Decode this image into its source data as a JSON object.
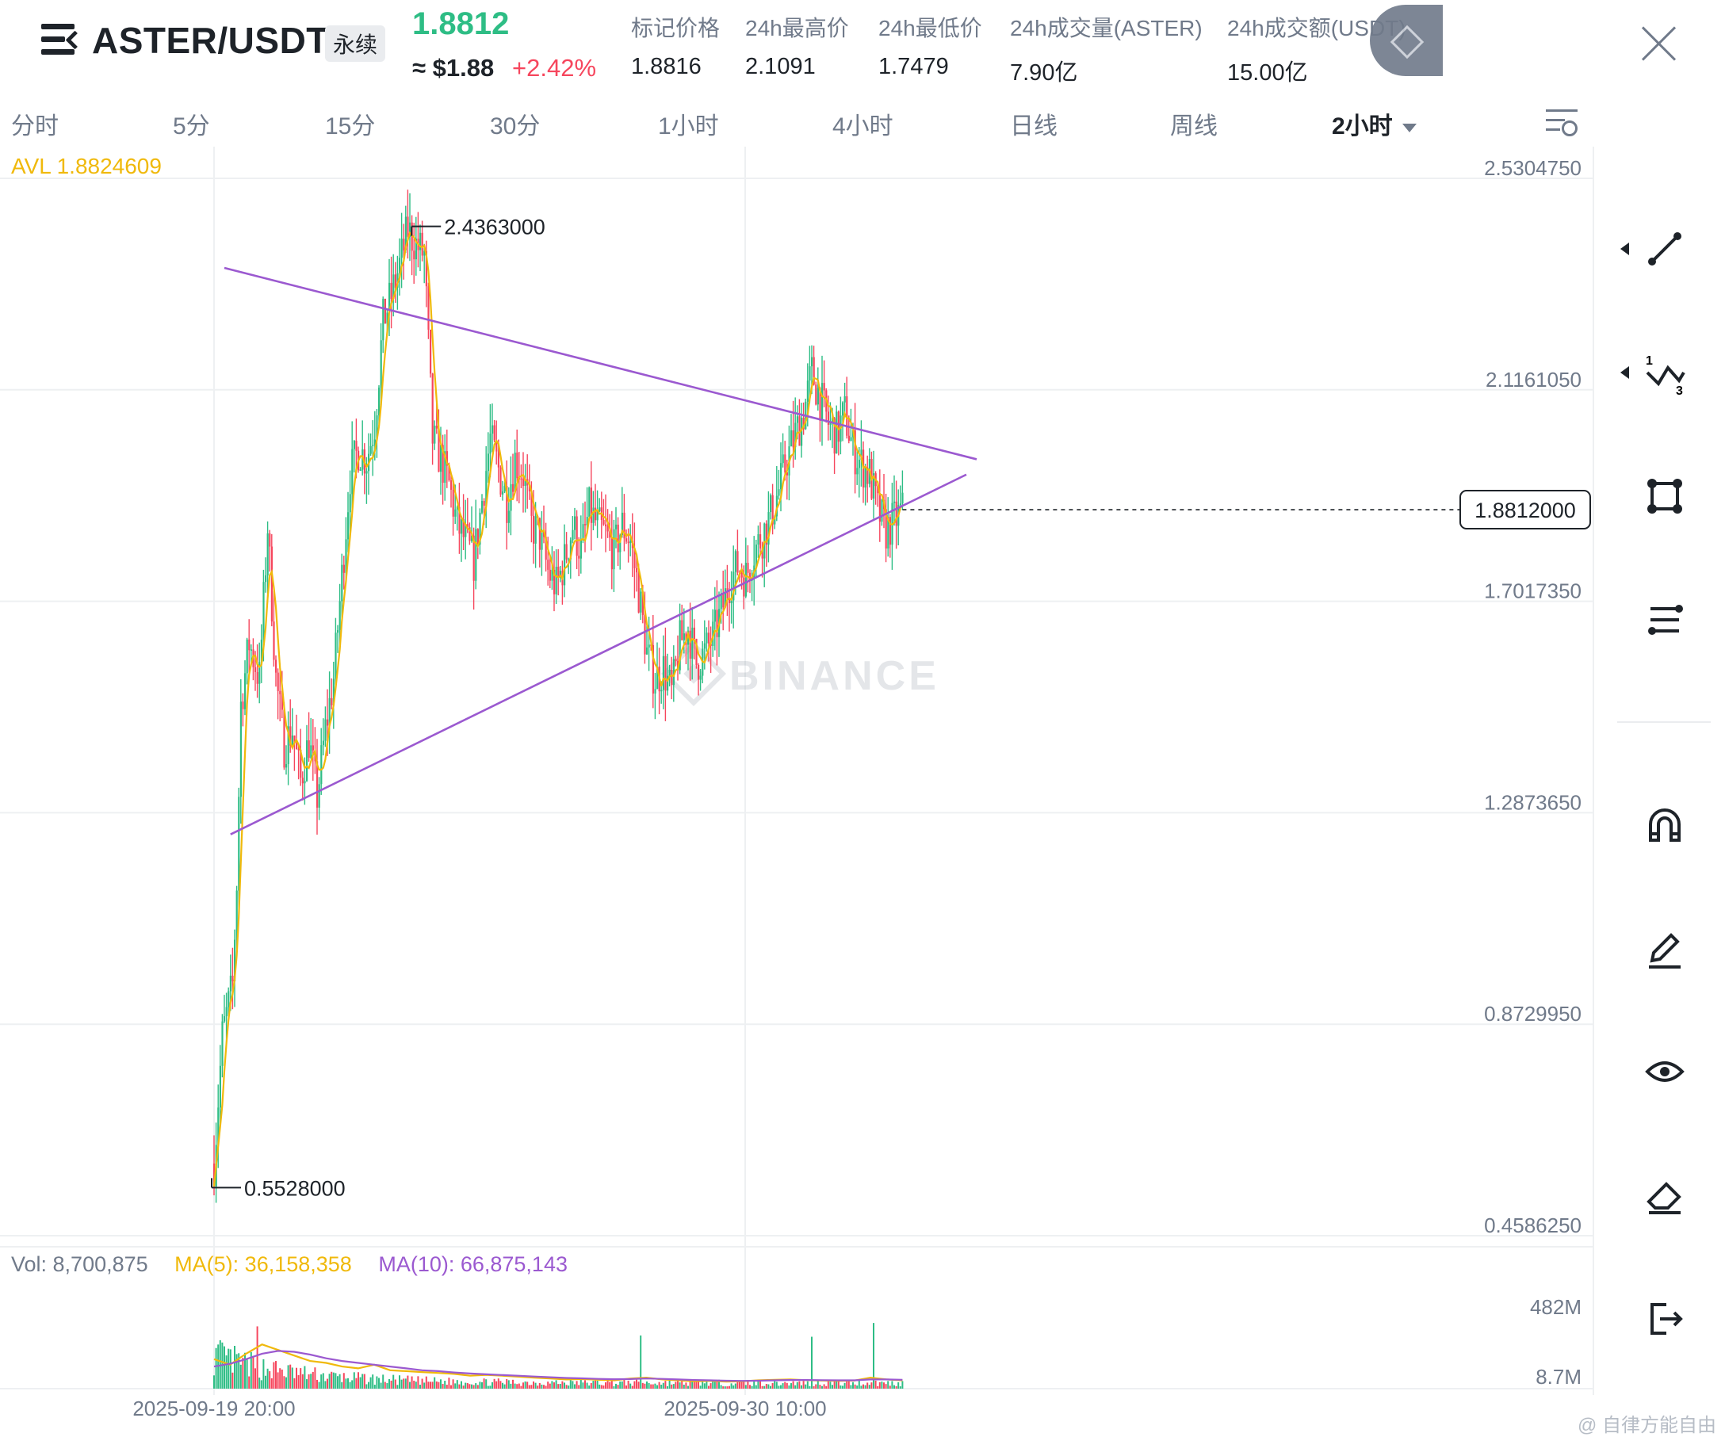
{
  "header": {
    "pair": "ASTER/USDT",
    "contract_type": "永续",
    "last_price": "1.8812",
    "usd_price": "≈ $1.88",
    "change_pct": "+2.42%",
    "stats": [
      {
        "label": "标记价格",
        "value": "1.8816"
      },
      {
        "label": "24h最高价",
        "value": "2.1091"
      },
      {
        "label": "24h最低价",
        "value": "1.7479"
      },
      {
        "label": "24h成交量(ASTER)",
        "value": "7.90亿"
      },
      {
        "label": "24h成交额(USDT)",
        "value": "15.00亿"
      }
    ]
  },
  "timeframes": [
    "分时",
    "5分",
    "15分",
    "30分",
    "1小时",
    "4小时",
    "日线",
    "周线",
    "2小时"
  ],
  "active_timeframe": "2小时",
  "indicators": {
    "avl": "AVL 1.8824609",
    "vol": "Vol: 8,700,875",
    "ma5": "MA(5): 36,158,358",
    "ma10": "MA(10): 66,875,143"
  },
  "colors": {
    "up": "#2ebd85",
    "down": "#f6465d",
    "ma5": "#f0b90b",
    "ma10": "#9b59d0",
    "trendline": "#9b59d0"
  },
  "chart_data": {
    "type": "candlestick",
    "symbol": "ASTER/USDT",
    "interval": "2小时",
    "y_axis_ticks": [
      "2.5304750",
      "2.1161050",
      "1.7017350",
      "1.2873650",
      "0.8729950",
      "0.4586250"
    ],
    "ylim": [
      0.458625,
      2.530475
    ],
    "x_axis_ticks": [
      "2025-09-19 20:00",
      "2025-09-30 10:00"
    ],
    "current_price_label": "1.8812000",
    "annotations": [
      {
        "label": "2.4363000",
        "type": "high"
      },
      {
        "label": "0.5528000",
        "type": "low"
      }
    ],
    "trendlines": [
      {
        "name": "upper",
        "from": {
          "bar": 5,
          "price": 2.355
        },
        "to": {
          "bar": 370,
          "price": 1.98
        }
      },
      {
        "name": "lower",
        "from": {
          "bar": 8,
          "price": 1.245
        },
        "to": {
          "bar": 365,
          "price": 1.95
        }
      }
    ],
    "price_path": [
      [
        0,
        0.6
      ],
      [
        4,
        0.85
      ],
      [
        9,
        0.95
      ],
      [
        11,
        1.15
      ],
      [
        13,
        1.5
      ],
      [
        17,
        1.62
      ],
      [
        22,
        1.55
      ],
      [
        26,
        1.85
      ],
      [
        30,
        1.55
      ],
      [
        34,
        1.42
      ],
      [
        38,
        1.45
      ],
      [
        42,
        1.35
      ],
      [
        46,
        1.43
      ],
      [
        50,
        1.32
      ],
      [
        54,
        1.45
      ],
      [
        58,
        1.55
      ],
      [
        62,
        1.75
      ],
      [
        66,
        1.95
      ],
      [
        70,
        2.0
      ],
      [
        74,
        1.98
      ],
      [
        78,
        2.05
      ],
      [
        82,
        2.25
      ],
      [
        86,
        2.3
      ],
      [
        90,
        2.36
      ],
      [
        94,
        2.43
      ],
      [
        98,
        2.4
      ],
      [
        102,
        2.38
      ],
      [
        106,
        2.02
      ],
      [
        110,
        1.98
      ],
      [
        114,
        1.93
      ],
      [
        118,
        1.85
      ],
      [
        122,
        1.82
      ],
      [
        126,
        1.78
      ],
      [
        130,
        1.9
      ],
      [
        134,
        2.02
      ],
      [
        138,
        1.96
      ],
      [
        142,
        1.9
      ],
      [
        146,
        1.98
      ],
      [
        150,
        1.95
      ],
      [
        154,
        1.85
      ],
      [
        158,
        1.83
      ],
      [
        162,
        1.76
      ],
      [
        166,
        1.73
      ],
      [
        170,
        1.78
      ],
      [
        174,
        1.85
      ],
      [
        178,
        1.8
      ],
      [
        182,
        1.88
      ],
      [
        186,
        1.85
      ],
      [
        190,
        1.83
      ],
      [
        194,
        1.8
      ],
      [
        198,
        1.85
      ],
      [
        202,
        1.82
      ],
      [
        206,
        1.72
      ],
      [
        210,
        1.6
      ],
      [
        214,
        1.55
      ],
      [
        218,
        1.57
      ],
      [
        222,
        1.52
      ],
      [
        226,
        1.62
      ],
      [
        230,
        1.65
      ],
      [
        234,
        1.58
      ],
      [
        238,
        1.6
      ],
      [
        242,
        1.63
      ],
      [
        246,
        1.68
      ],
      [
        250,
        1.74
      ],
      [
        254,
        1.77
      ],
      [
        258,
        1.75
      ],
      [
        262,
        1.8
      ],
      [
        266,
        1.83
      ],
      [
        270,
        1.87
      ],
      [
        274,
        1.92
      ],
      [
        278,
        1.98
      ],
      [
        282,
        2.03
      ],
      [
        286,
        2.07
      ],
      [
        290,
        2.15
      ],
      [
        294,
        2.1
      ],
      [
        298,
        2.05
      ],
      [
        302,
        2.03
      ],
      [
        306,
        2.07
      ],
      [
        310,
        2.0
      ],
      [
        314,
        1.97
      ],
      [
        318,
        1.95
      ],
      [
        322,
        1.88
      ],
      [
        326,
        1.84
      ],
      [
        330,
        1.86
      ],
      [
        334,
        1.88
      ]
    ],
    "ma5_vol": [
      160,
      130,
      190,
      240,
      210,
      180,
      150,
      140,
      120,
      110,
      130,
      100,
      95,
      90,
      85,
      80,
      70,
      75,
      70,
      65,
      60,
      55,
      50,
      52,
      48,
      45,
      55,
      60,
      50,
      45,
      40,
      42,
      38,
      40,
      45,
      48,
      50,
      46,
      44,
      42,
      44,
      60,
      50,
      45
    ],
    "ma10_vol": [
      120,
      135,
      160,
      190,
      205,
      200,
      185,
      165,
      150,
      140,
      130,
      120,
      110,
      100,
      95,
      88,
      82,
      78,
      74,
      70,
      66,
      62,
      58,
      56,
      53,
      51,
      52,
      55,
      53,
      50,
      47,
      45,
      43,
      42,
      43,
      45,
      47,
      47,
      46,
      45,
      45,
      50,
      50,
      48
    ],
    "volume_axis_ticks": [
      "482M",
      "8.7M"
    ],
    "volume_ylim": [
      0,
      482
    ]
  },
  "toolbar": {
    "tools": [
      "trendline-icon",
      "fib-icon",
      "shape-icon",
      "indicator-icon",
      "magnet-icon",
      "pencil-icon",
      "eye-icon",
      "eraser-icon",
      "exit-icon"
    ]
  },
  "watermark_text": "@ 自律方能自由"
}
